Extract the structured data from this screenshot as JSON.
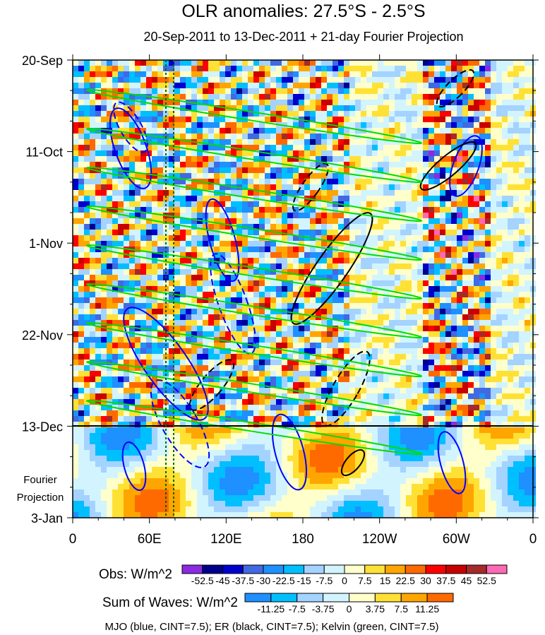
{
  "chart_data": {
    "type": "heatmap",
    "title": "OLR anomalies: 27.5°S - 2.5°S",
    "subtitle": "20-Sep-2011 to 13-Dec-2011 + 21-day Fourier Projection",
    "x_ticks": [
      "0",
      "60E",
      "120E",
      "180",
      "120W",
      "60W",
      "0"
    ],
    "y_ticks": [
      "20-Sep",
      "11-Oct",
      "1-Nov",
      "22-Nov",
      "13-Dec",
      "3-Jan"
    ],
    "projection_label": [
      "Fourier",
      "Projection"
    ],
    "obs_colorbar": {
      "label": "Obs: W/m^2",
      "levels": [
        "-52.5",
        "-45",
        "-37.5",
        "-30",
        "-22.5",
        "-15",
        "-7.5",
        "0",
        "7.5",
        "15",
        "22.5",
        "30",
        "37.5",
        "45",
        "52.5"
      ],
      "colors": [
        "#8a2be2",
        "#00008b",
        "#0000cd",
        "#4169e1",
        "#1e90ff",
        "#00bfff",
        "#a4d3ff",
        "#d2f4ff",
        "#ffffcc",
        "#ffe135",
        "#ffa500",
        "#ff6a00",
        "#ff0000",
        "#c80000",
        "#a52a2a",
        "#ff69b4"
      ]
    },
    "waves_colorbar": {
      "label": "Sum of Waves: W/m^2",
      "levels": [
        "-11.25",
        "-7.5",
        "-3.75",
        "0",
        "3.75",
        "7.5",
        "11.25"
      ],
      "colors": [
        "#1e90ff",
        "#00bfff",
        "#a4d3ff",
        "#d2f4ff",
        "#ffffcc",
        "#ffe135",
        "#ffa500",
        "#ff6a00"
      ]
    },
    "contour_legend": "MJO (blue, CINT=7.5); ER (black, CINT=7.5); Kelvin (green, CINT=7.5)",
    "contour_colors": {
      "mjo": "#0000ff",
      "er": "#000000",
      "kelvin": "#00dd00"
    }
  }
}
